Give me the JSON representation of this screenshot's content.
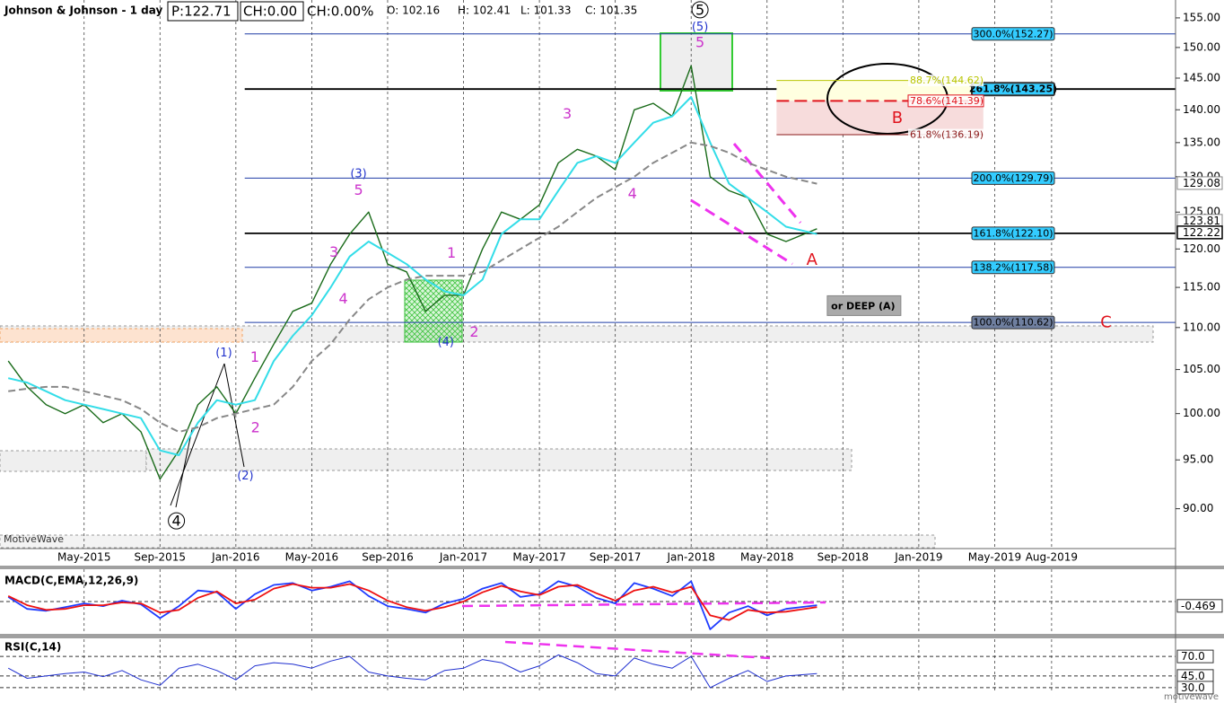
{
  "chart_data": [
    {
      "type": "line",
      "title": "Johnson & Johnson - 1 day",
      "quote_fields": [
        "P:122.71",
        "CH:0.00",
        "CH:0.00%",
        "O: 102.16",
        "H: 102.41",
        "L: 101.33",
        "C: 101.35"
      ],
      "x": [
        "2015-01",
        "2015-02",
        "2015-03",
        "2015-04",
        "2015-05",
        "2015-06",
        "2015-07",
        "2015-08",
        "2015-09",
        "2015-10",
        "2015-11",
        "2015-12",
        "2016-01",
        "2016-02",
        "2016-03",
        "2016-04",
        "2016-05",
        "2016-06",
        "2016-07",
        "2016-08",
        "2016-09",
        "2016-10",
        "2016-11",
        "2016-12",
        "2017-01",
        "2017-02",
        "2017-03",
        "2017-04",
        "2017-05",
        "2017-06",
        "2017-07",
        "2017-08",
        "2017-09",
        "2017-10",
        "2017-11",
        "2017-12",
        "2018-01",
        "2018-02",
        "2018-03",
        "2018-04",
        "2018-05",
        "2018-06",
        "2018-07-20"
      ],
      "series": [
        {
          "color": "#1a6b1a",
          "width": 1.4,
          "values": [
            106,
            103,
            101,
            100,
            101,
            99,
            100,
            98,
            93,
            96,
            101,
            103,
            100,
            104,
            108,
            112,
            113,
            118,
            122,
            125,
            118,
            117,
            112,
            114,
            114,
            120,
            125,
            124,
            126,
            132,
            134,
            133,
            131,
            140,
            141,
            139,
            147,
            130,
            128,
            127,
            122,
            121,
            122.71
          ]
        },
        {
          "color": "#33dde8",
          "width": 2,
          "values": [
            104,
            103.5,
            102.5,
            101.5,
            101,
            100.5,
            100,
            99.5,
            96,
            95.5,
            99,
            101.5,
            101,
            101.5,
            106,
            109,
            111.5,
            115,
            119,
            121,
            119.5,
            118,
            116,
            114.5,
            114,
            116,
            122,
            124,
            124,
            128,
            132,
            133,
            132,
            135,
            138,
            139,
            142,
            135,
            129,
            127,
            125,
            123,
            122
          ]
        },
        {
          "color": "#888888",
          "width": 2,
          "dash": true,
          "values": [
            102.5,
            102.8,
            103,
            103,
            102.5,
            102,
            101.5,
            100.5,
            99,
            98,
            98.5,
            99.5,
            100,
            100.5,
            101,
            103,
            106,
            108,
            111,
            113.5,
            115,
            116,
            116.5,
            116.5,
            116.5,
            117,
            118.5,
            120,
            121.5,
            123,
            125,
            127,
            128.5,
            130,
            132,
            133.5,
            135,
            134.5,
            133.5,
            132,
            131,
            130,
            129
          ]
        }
      ],
      "xlim": [
        "2014-12-18",
        "2020-02-17"
      ],
      "xticks": [
        {
          "value": "2015-05",
          "label": "May-2015"
        },
        {
          "value": "2015-09",
          "label": "Sep-2015"
        },
        {
          "value": "2016-01",
          "label": "Jan-2016"
        },
        {
          "value": "2016-05",
          "label": "May-2016"
        },
        {
          "value": "2016-09",
          "label": "Sep-2016"
        },
        {
          "value": "2017-01",
          "label": "Jan-2017"
        },
        {
          "value": "2017-05",
          "label": "May-2017"
        },
        {
          "value": "2017-09",
          "label": "Sep-2017"
        },
        {
          "value": "2018-01",
          "label": "Jan-2018"
        },
        {
          "value": "2018-05",
          "label": "May-2018"
        },
        {
          "value": "2018-09",
          "label": "Sep-2018"
        },
        {
          "value": "2019-01",
          "label": "Jan-2019"
        },
        {
          "value": "2019-05",
          "label": "May-2019"
        },
        {
          "value": "2019-08",
          "label": "Aug-2019"
        }
      ],
      "ylim": [
        86.2,
        158.1
      ],
      "log_scale": true,
      "grid": "x",
      "yticks": [
        {
          "value": 90,
          "label": "90.00"
        },
        {
          "value": 95,
          "label": "95.00"
        },
        {
          "value": 100,
          "label": "100.00"
        },
        {
          "value": 105,
          "label": "105.00"
        },
        {
          "value": 110,
          "label": "110.00"
        },
        {
          "value": 115,
          "label": "115.00"
        },
        {
          "value": 120,
          "label": "120.00"
        },
        {
          "value": 125,
          "label": "125.00"
        },
        {
          "value": 130,
          "label": "130.00"
        },
        {
          "value": 135,
          "label": "135.00"
        },
        {
          "value": 140,
          "label": "140.00"
        },
        {
          "value": 145,
          "label": "145.00"
        },
        {
          "value": 150,
          "label": "150.00"
        },
        {
          "value": 155,
          "label": "155.00"
        }
      ],
      "price_tags": [
        129.08,
        123.81,
        122.22
      ],
      "fib_start": "2016-01-15",
      "fib_levels": [
        {
          "label": "300.0%(152.27)",
          "value": 152.27,
          "color": "#1f3ca6",
          "box": "#33ccff"
        },
        {
          "label": "261.8%(143.25)",
          "value": 143.25,
          "color": "#000000",
          "box": "#33ccff"
        },
        {
          "label": "200.0%(129.79)",
          "value": 129.79,
          "color": "#1f3ca6",
          "box": "#33ccff"
        },
        {
          "label": "161.8%(122.10)",
          "value": 122.1,
          "color": "#000000",
          "box": "#33ccff"
        },
        {
          "label": "138.2%(117.58)",
          "value": 117.58,
          "color": "#1f3ca6",
          "box": "#33ccff"
        },
        {
          "label": "100.0%(110.62)",
          "value": 110.62,
          "color": "#1f3ca6",
          "box": "#6f7f9f"
        }
      ],
      "retracement_span": [
        "2018-05-16",
        "2019-04-13"
      ],
      "retracements": [
        {
          "label": "88.7%(144.62)",
          "value": 144.62,
          "color": "#b8c400"
        },
        {
          "label": "78.6%(141.39)",
          "value": 141.39,
          "color": "#e0141e",
          "dash": true
        },
        {
          "label": "61.8%(136.19)",
          "value": 136.19,
          "color": "#8b1a1a"
        }
      ],
      "annotations": [
        {
          "text": "5",
          "x": "2018-01-15",
          "y": 156.4,
          "color": "#000000",
          "circled": true
        },
        {
          "text": "(5)",
          "x": "2018-01-15",
          "y": 153.5,
          "color": "#2233cc"
        },
        {
          "text": "5",
          "x": "2018-01-15",
          "y": 150.9,
          "color": "#cc33cc"
        },
        {
          "text": "3",
          "x": "2017-06-15",
          "y": 139.4,
          "color": "#cc33cc"
        },
        {
          "text": "4",
          "x": "2017-09-28",
          "y": 127.6,
          "color": "#cc33cc"
        },
        {
          "text": "(3)",
          "x": "2016-07-15",
          "y": 130.5,
          "color": "#2233cc"
        },
        {
          "text": "5",
          "x": "2016-07-15",
          "y": 128.1,
          "color": "#cc33cc"
        },
        {
          "text": "3",
          "x": "2016-06-06",
          "y": 119.6,
          "color": "#cc33cc"
        },
        {
          "text": "4",
          "x": "2016-06-21",
          "y": 113.6,
          "color": "#cc33cc"
        },
        {
          "text": "(1)",
          "x": "2015-12-12",
          "y": 107.0,
          "color": "#2233cc"
        },
        {
          "text": "1",
          "x": "2016-02-01",
          "y": 106.5,
          "color": "#cc33cc"
        },
        {
          "text": "2",
          "x": "2016-02-02",
          "y": 98.5,
          "color": "#cc33cc"
        },
        {
          "text": "(2)",
          "x": "2016-01-16",
          "y": 93.4,
          "color": "#2233cc"
        },
        {
          "text": "4",
          "x": "2015-09-27",
          "y": 88.8,
          "color": "#000000",
          "circled": true
        },
        {
          "text": "1",
          "x": "2016-12-12",
          "y": 119.5,
          "color": "#cc33cc"
        },
        {
          "text": "2",
          "x": "2017-01-18",
          "y": 109.5,
          "color": "#cc33cc"
        },
        {
          "text": "(4)",
          "x": "2016-12-03",
          "y": 108.3,
          "color": "#2233cc"
        },
        {
          "text": "A",
          "x": "2018-07-12",
          "y": 118.6,
          "color": "#e0141e"
        },
        {
          "text": "B",
          "x": "2018-11-27",
          "y": 138.8,
          "color": "#e0141e"
        },
        {
          "text": "C",
          "x": "2019-10-27",
          "y": 110.7,
          "color": "#e0141e"
        },
        {
          "text": "or DEEP (A)",
          "x": "2018-10-03",
          "y": 112.7,
          "color": "#000000",
          "box": true
        }
      ],
      "branding": {
        "label": "MotiveWave",
        "logo": "motivewave"
      }
    },
    {
      "type": "line",
      "title": "MACD(C,EMA,12,26,9)",
      "series": [
        {
          "color": "#1f3cff",
          "width": 1.8,
          "values": [
            0.5,
            -0.8,
            -1.0,
            -0.6,
            -0.2,
            -0.5,
            0.1,
            -0.3,
            -1.8,
            -0.5,
            1.2,
            1.0,
            -0.8,
            0.8,
            1.8,
            2.0,
            1.2,
            1.6,
            2.2,
            0.6,
            -0.5,
            -0.8,
            -1.2,
            -0.2,
            0.3,
            1.4,
            2.0,
            0.5,
            0.8,
            2.2,
            1.6,
            0.4,
            -0.2,
            2.0,
            1.4,
            0.6,
            2.2,
            -3.0,
            -1.2,
            -0.5,
            -1.5,
            -0.8,
            -0.4
          ]
        },
        {
          "color": "#ee1111",
          "width": 1.8,
          "values": [
            0.6,
            -0.4,
            -0.9,
            -0.8,
            -0.4,
            -0.4,
            -0.1,
            -0.2,
            -1.2,
            -0.9,
            0.4,
            1.1,
            -0.2,
            0.2,
            1.4,
            1.9,
            1.5,
            1.5,
            1.9,
            1.2,
            0.1,
            -0.6,
            -1.0,
            -0.6,
            0.0,
            1.0,
            1.7,
            1.1,
            0.7,
            1.6,
            1.8,
            0.9,
            0.1,
            1.2,
            1.6,
            1.0,
            1.6,
            -1.5,
            -2.0,
            -0.9,
            -1.2,
            -1.1,
            -0.6
          ]
        }
      ],
      "ylim": [
        -3.5,
        3.5
      ],
      "value_tag": -0.469
    },
    {
      "type": "line",
      "title": "RSI(C,14)",
      "series": [
        {
          "color": "#1f2fd0",
          "width": 1,
          "values": [
            55,
            42,
            45,
            48,
            50,
            44,
            52,
            40,
            33,
            55,
            60,
            52,
            40,
            58,
            62,
            60,
            55,
            64,
            70,
            50,
            45,
            42,
            40,
            52,
            55,
            66,
            62,
            50,
            58,
            72,
            62,
            48,
            45,
            68,
            60,
            55,
            70,
            30,
            42,
            52,
            38,
            45,
            48
          ]
        }
      ],
      "ylim": [
        23,
        92
      ],
      "yticks": [
        {
          "value": 70,
          "label": "70.0"
        },
        {
          "value": 45,
          "label": "45.0"
        },
        {
          "value": 30,
          "label": "30.0"
        }
      ]
    }
  ]
}
